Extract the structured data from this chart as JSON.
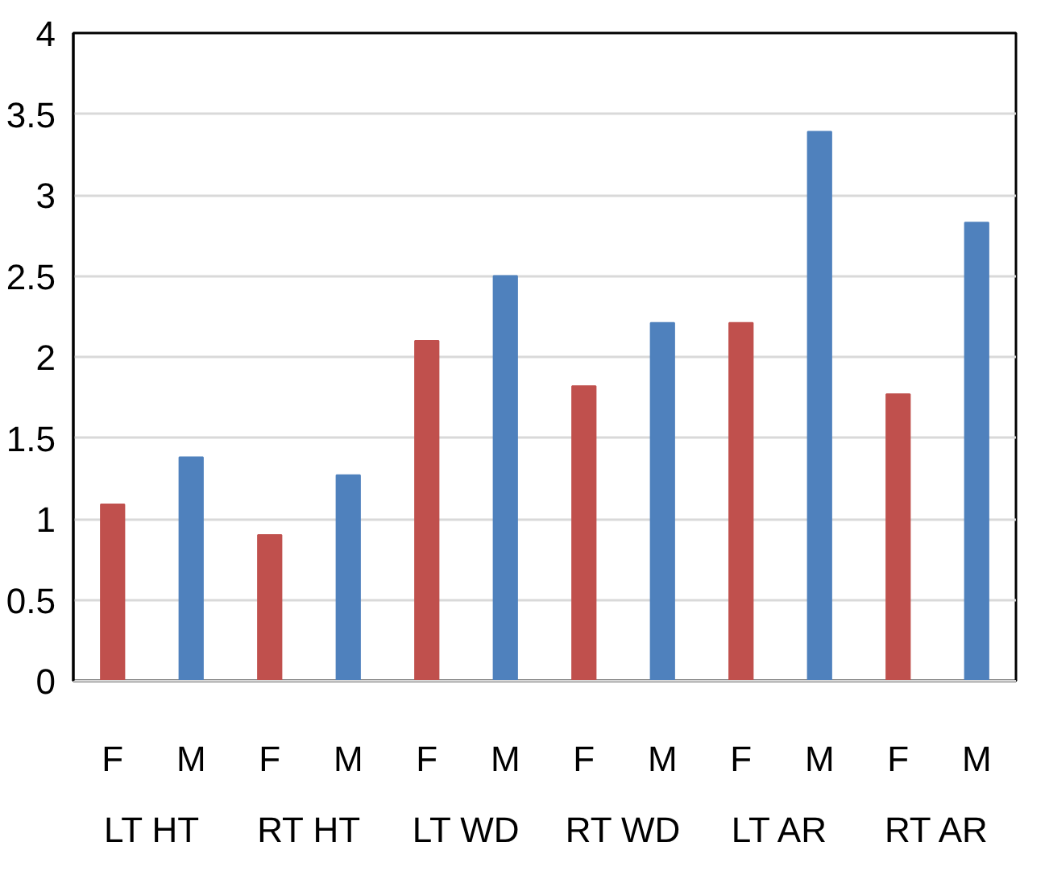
{
  "chart_data": {
    "type": "bar",
    "categories": [
      "F",
      "M",
      "F",
      "M",
      "F",
      "M",
      "F",
      "M",
      "F",
      "M",
      "F",
      "M"
    ],
    "values": [
      1.09,
      1.38,
      0.9,
      1.27,
      2.1,
      2.5,
      1.82,
      2.21,
      2.21,
      3.39,
      1.77,
      2.83
    ],
    "colors": [
      "#c0504d",
      "#4f81bd",
      "#c0504d",
      "#4f81bd",
      "#c0504d",
      "#4f81bd",
      "#c0504d",
      "#4f81bd",
      "#c0504d",
      "#4f81bd",
      "#c0504d",
      "#4f81bd"
    ],
    "ylim": [
      0,
      4
    ],
    "yticks": [
      0,
      0.5,
      1,
      1.5,
      2,
      2.5,
      3,
      3.5,
      4
    ],
    "grid": "y",
    "annotations": [
      "LT HT",
      "RT HT",
      "LT WD",
      "RT WD",
      "LT AR",
      "RT AR"
    ]
  }
}
